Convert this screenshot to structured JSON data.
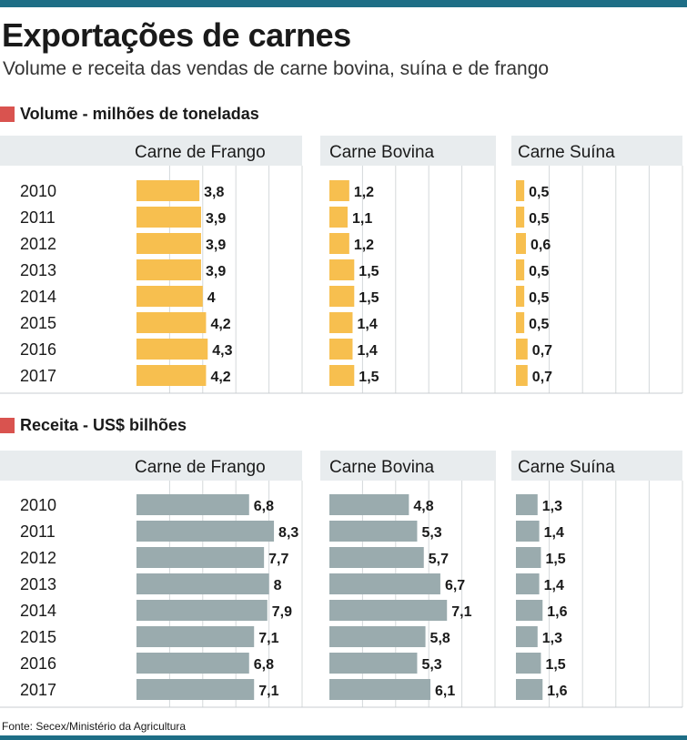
{
  "title": "Exportações de carnes",
  "subtitle": "Volume e receita das vendas de carne bovina, suína e de frango",
  "footer": "Fonte: Secex/Ministério da Agricultura",
  "colors": {
    "accent_bar": "#1e6e86",
    "section_marker": "#d9534f",
    "volume_bar": "#f7bf4f",
    "receita_bar": "#9aabae",
    "header_bg": "#e8ecee"
  },
  "chart_data": [
    {
      "type": "bar",
      "section_title": "Volume - milhões de toneladas",
      "categories": [
        "2010",
        "2011",
        "2012",
        "2013",
        "2014",
        "2015",
        "2016",
        "2017"
      ],
      "series": [
        {
          "name": "Carne de Frango",
          "values": [
            3.8,
            3.9,
            3.9,
            3.9,
            4,
            4.2,
            4.3,
            4.2
          ],
          "labels": [
            "3,8",
            "3,9",
            "3,9",
            "3,9",
            "4",
            "4,2",
            "4,3",
            "4,2"
          ],
          "xlim": [
            0,
            10
          ]
        },
        {
          "name": "Carne Bovina",
          "values": [
            1.2,
            1.1,
            1.2,
            1.5,
            1.5,
            1.4,
            1.4,
            1.5
          ],
          "labels": [
            "1,2",
            "1,1",
            "1,2",
            "1,5",
            "1,5",
            "1,4",
            "1,4",
            "1,5"
          ],
          "xlim": [
            0,
            10
          ]
        },
        {
          "name": "Carne Suína",
          "values": [
            0.5,
            0.5,
            0.6,
            0.5,
            0.5,
            0.5,
            0.7,
            0.7
          ],
          "labels": [
            "0,5",
            "0,5",
            "0,6",
            "0,5",
            "0,5",
            "0,5",
            "0,7",
            "0,7"
          ],
          "xlim": [
            0,
            10
          ]
        }
      ]
    },
    {
      "type": "bar",
      "section_title": "Receita - US$ bilhões",
      "categories": [
        "2010",
        "2011",
        "2012",
        "2013",
        "2014",
        "2015",
        "2016",
        "2017"
      ],
      "series": [
        {
          "name": "Carne de Frango",
          "values": [
            6.8,
            8.3,
            7.7,
            8,
            7.9,
            7.1,
            6.8,
            7.1
          ],
          "labels": [
            "6,8",
            "8,3",
            "7,7",
            "8",
            "7,9",
            "7,1",
            "6,8",
            "7,1"
          ],
          "xlim": [
            0,
            10
          ]
        },
        {
          "name": "Carne Bovina",
          "values": [
            4.8,
            5.3,
            5.7,
            6.7,
            7.1,
            5.8,
            5.3,
            6.1
          ],
          "labels": [
            "4,8",
            "5,3",
            "5,7",
            "6,7",
            "7,1",
            "5,8",
            "5,3",
            "6,1"
          ],
          "xlim": [
            0,
            10
          ]
        },
        {
          "name": "Carne Suína",
          "values": [
            1.3,
            1.4,
            1.5,
            1.4,
            1.6,
            1.3,
            1.5,
            1.6
          ],
          "labels": [
            "1,3",
            "1,4",
            "1,5",
            "1,4",
            "1,6",
            "1,3",
            "1,5",
            "1,6"
          ],
          "xlim": [
            0,
            10
          ]
        }
      ]
    }
  ]
}
